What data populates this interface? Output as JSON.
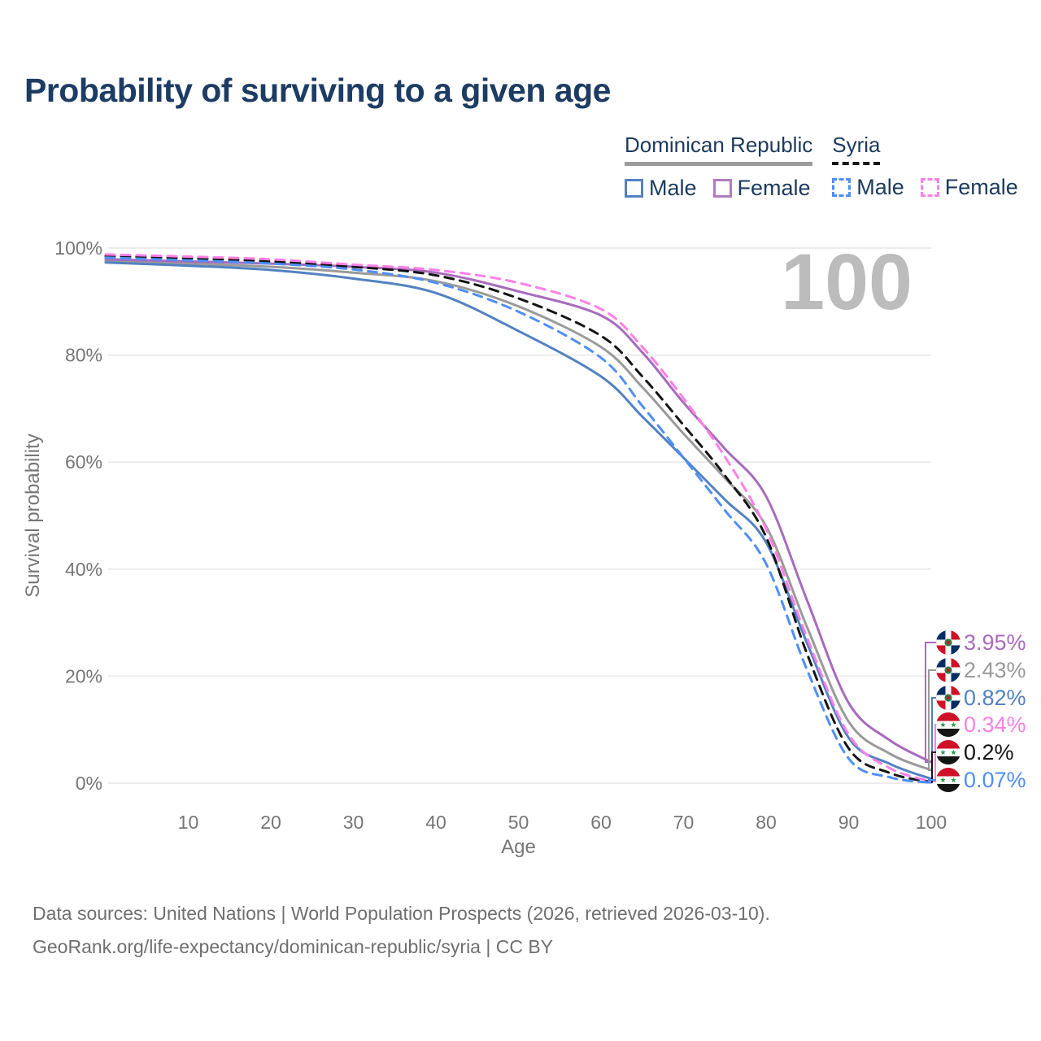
{
  "title": "Probability of surviving to a given age",
  "watermark_age": "100",
  "legend": {
    "groups": [
      {
        "label": "Dominican Republic",
        "line_style": "solid",
        "line_color": "#9b9b9b"
      },
      {
        "label": "Syria",
        "line_style": "dashed",
        "line_color": "#141414"
      }
    ],
    "items": [
      {
        "label": "Male",
        "group": "Dominican Republic",
        "color": "#5282c2",
        "dashed": false
      },
      {
        "label": "Female",
        "group": "Dominican Republic",
        "color": "#b07cc0",
        "dashed": false
      },
      {
        "label": "Male",
        "group": "Syria",
        "color": "#4f8ef7",
        "dashed": true
      },
      {
        "label": "Female",
        "group": "Syria",
        "color": "#ff80e5",
        "dashed": true
      }
    ]
  },
  "chart_data": {
    "type": "line",
    "title": "Probability of surviving to a given age",
    "xlabel": "Age",
    "ylabel": "Survival probability",
    "xlim": [
      0,
      100
    ],
    "ylim": [
      0,
      100
    ],
    "grid": "horizontal-only",
    "legend_position": "top-right",
    "x_ticks": [
      10,
      20,
      30,
      40,
      50,
      60,
      70,
      80,
      90,
      100
    ],
    "y_ticks": [
      "0%",
      "20%",
      "40%",
      "60%",
      "80%",
      "100%"
    ],
    "y_tick_values": [
      0,
      20,
      40,
      60,
      80,
      100
    ],
    "ages": [
      0,
      10,
      20,
      30,
      40,
      50,
      60,
      65,
      70,
      75,
      80,
      85,
      90,
      95,
      100
    ],
    "series": [
      {
        "id": "dr-female",
        "name": "Dominican Republic Female",
        "group": "Dominican Republic",
        "sex": "Female",
        "color": "#a86bbd",
        "dashed": false,
        "end_label": "3.95%",
        "flag": "dominican-republic",
        "values": [
          97.9,
          97.5,
          97.1,
          96.5,
          95.4,
          91.9,
          87.4,
          80.5,
          71.1,
          62.5,
          53.6,
          34.0,
          15.0,
          8.0,
          3.95
        ]
      },
      {
        "id": "dr-total",
        "name": "Dominican Republic",
        "group": "Dominican Republic",
        "sex": "Both",
        "color": "#9a9a9a",
        "dashed": false,
        "end_label": "2.43%",
        "flag": "dominican-republic",
        "values": [
          97.6,
          97.1,
          96.5,
          95.4,
          93.8,
          89.1,
          81.5,
          74.0,
          65.3,
          57.0,
          48.0,
          29.0,
          11.5,
          5.5,
          2.43
        ]
      },
      {
        "id": "dr-male",
        "name": "Dominican Republic Male",
        "group": "Dominican Republic",
        "sex": "Male",
        "color": "#5282c2",
        "dashed": false,
        "end_label": "0.82%",
        "flag": "dominican-republic",
        "values": [
          97.3,
          96.7,
          95.9,
          94.3,
          91.6,
          84.5,
          76.0,
          68.5,
          60.8,
          53.0,
          45.0,
          26.0,
          8.5,
          3.6,
          0.82
        ]
      },
      {
        "id": "syria-female",
        "name": "Syria Female",
        "group": "Syria",
        "sex": "Female",
        "color": "#ff80e5",
        "dashed": true,
        "end_label": "0.34%",
        "flag": "syria",
        "values": [
          98.8,
          98.4,
          97.9,
          96.9,
          95.9,
          93.5,
          88.6,
          81.5,
          71.9,
          61.0,
          47.5,
          27.0,
          9.1,
          2.8,
          0.34
        ]
      },
      {
        "id": "syria-total",
        "name": "Syria",
        "group": "Syria",
        "sex": "Both",
        "color": "#141414",
        "dashed": true,
        "end_label": "0.2%",
        "flag": "syria",
        "values": [
          98.5,
          98.1,
          97.5,
          96.5,
          94.9,
          90.6,
          83.6,
          76.0,
          66.9,
          57.5,
          46.0,
          24.0,
          6.5,
          1.9,
          0.2
        ]
      },
      {
        "id": "syria-male",
        "name": "Syria Male",
        "group": "Syria",
        "sex": "Male",
        "color": "#4f8ef7",
        "dashed": true,
        "end_label": "0.07%",
        "flag": "syria",
        "values": [
          98.2,
          97.7,
          97.1,
          96.0,
          93.5,
          88.1,
          79.5,
          70.5,
          60.8,
          51.0,
          41.0,
          21.0,
          4.6,
          1.1,
          0.07
        ]
      }
    ]
  },
  "footer": {
    "line1": "Data sources: United Nations | World Population Prospects (2026, retrieved 2026-03-10).",
    "line2": "GeoRank.org/life-expectancy/dominican-republic/syria | CC BY"
  }
}
